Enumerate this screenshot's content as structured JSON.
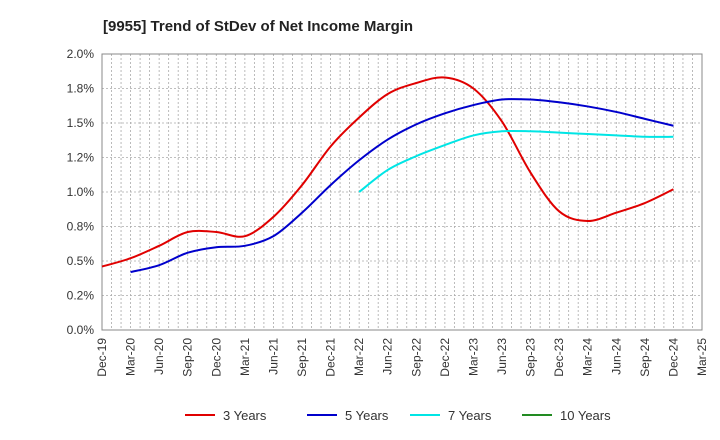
{
  "chart_data": {
    "type": "line",
    "title": "[9955]  Trend of StDev of Net Income Margin",
    "xlabel": "",
    "ylabel": "",
    "x_ticks": [
      "Dec-19",
      "Mar-20",
      "Jun-20",
      "Sep-20",
      "Dec-20",
      "Mar-21",
      "Jun-21",
      "Sep-21",
      "Dec-21",
      "Mar-22",
      "Jun-22",
      "Sep-22",
      "Dec-22",
      "Mar-23",
      "Jun-23",
      "Sep-23",
      "Dec-23",
      "Mar-24",
      "Jun-24",
      "Sep-24",
      "Dec-24",
      "Mar-25"
    ],
    "y_ticks": [
      "0.0%",
      "0.2%",
      "0.5%",
      "0.8%",
      "1.0%",
      "1.2%",
      "1.5%",
      "1.8%",
      "2.0%"
    ],
    "ylim": [
      0,
      2.0
    ],
    "grid": true,
    "legend_position": "bottom",
    "series": [
      {
        "name": "3 Years",
        "color": "#e00000",
        "points": [
          [
            "Dec-19",
            0.46
          ],
          [
            "Mar-20",
            0.52
          ],
          [
            "Jun-20",
            0.61
          ],
          [
            "Sep-20",
            0.71
          ],
          [
            "Dec-20",
            0.71
          ],
          [
            "Mar-21",
            0.68
          ],
          [
            "Jun-21",
            0.82
          ],
          [
            "Sep-21",
            1.05
          ],
          [
            "Dec-21",
            1.33
          ],
          [
            "Mar-22",
            1.54
          ],
          [
            "Jun-22",
            1.71
          ],
          [
            "Sep-22",
            1.79
          ],
          [
            "Dec-22",
            1.83
          ],
          [
            "Mar-23",
            1.75
          ],
          [
            "Jun-23",
            1.51
          ],
          [
            "Sep-23",
            1.14
          ],
          [
            "Dec-23",
            0.86
          ],
          [
            "Mar-24",
            0.79
          ],
          [
            "Jun-24",
            0.85
          ],
          [
            "Sep-24",
            0.92
          ],
          [
            "Dec-24",
            1.02
          ]
        ]
      },
      {
        "name": "5 Years",
        "color": "#0000cc",
        "points": [
          [
            "Mar-20",
            0.42
          ],
          [
            "Jun-20",
            0.47
          ],
          [
            "Sep-20",
            0.56
          ],
          [
            "Dec-20",
            0.6
          ],
          [
            "Mar-21",
            0.61
          ],
          [
            "Jun-21",
            0.68
          ],
          [
            "Sep-21",
            0.85
          ],
          [
            "Dec-21",
            1.05
          ],
          [
            "Mar-22",
            1.23
          ],
          [
            "Jun-22",
            1.38
          ],
          [
            "Sep-22",
            1.49
          ],
          [
            "Dec-22",
            1.57
          ],
          [
            "Mar-23",
            1.63
          ],
          [
            "Jun-23",
            1.67
          ],
          [
            "Sep-23",
            1.67
          ],
          [
            "Dec-23",
            1.65
          ],
          [
            "Mar-24",
            1.62
          ],
          [
            "Jun-24",
            1.58
          ],
          [
            "Sep-24",
            1.53
          ],
          [
            "Dec-24",
            1.48
          ]
        ]
      },
      {
        "name": "7 Years",
        "color": "#00e5e5",
        "points": [
          [
            "Mar-22",
            1.0
          ],
          [
            "Jun-22",
            1.16
          ],
          [
            "Sep-22",
            1.26
          ],
          [
            "Dec-22",
            1.34
          ],
          [
            "Mar-23",
            1.41
          ],
          [
            "Jun-23",
            1.44
          ],
          [
            "Sep-23",
            1.44
          ],
          [
            "Dec-23",
            1.43
          ],
          [
            "Mar-24",
            1.42
          ],
          [
            "Jun-24",
            1.41
          ],
          [
            "Sep-24",
            1.4
          ],
          [
            "Dec-24",
            1.4
          ]
        ]
      },
      {
        "name": "10 Years",
        "color": "#228b22",
        "points": []
      }
    ]
  }
}
